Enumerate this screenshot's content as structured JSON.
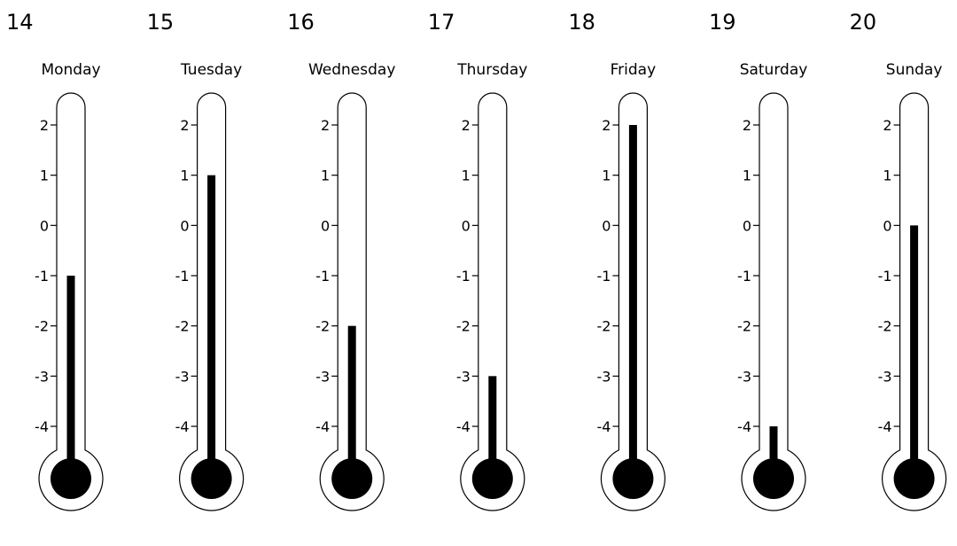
{
  "chart_data": {
    "type": "bar",
    "style": "thermometer",
    "grid": false,
    "ylim": [
      -4,
      2
    ],
    "y_ticks": [
      2,
      1,
      0,
      -1,
      -2,
      -3,
      -4
    ],
    "days": [
      {
        "date": "14",
        "day": "Monday",
        "value": -1
      },
      {
        "date": "15",
        "day": "Tuesday",
        "value": 1
      },
      {
        "date": "16",
        "day": "Wednesday",
        "value": -2
      },
      {
        "date": "17",
        "day": "Thursday",
        "value": -3
      },
      {
        "date": "18",
        "day": "Friday",
        "value": 2
      },
      {
        "date": "19",
        "day": "Saturday",
        "value": -4
      },
      {
        "date": "20",
        "day": "Sunday",
        "value": 0
      }
    ]
  },
  "colors": {
    "outline": "#000000",
    "fill": "#000000",
    "background": "#ffffff"
  }
}
